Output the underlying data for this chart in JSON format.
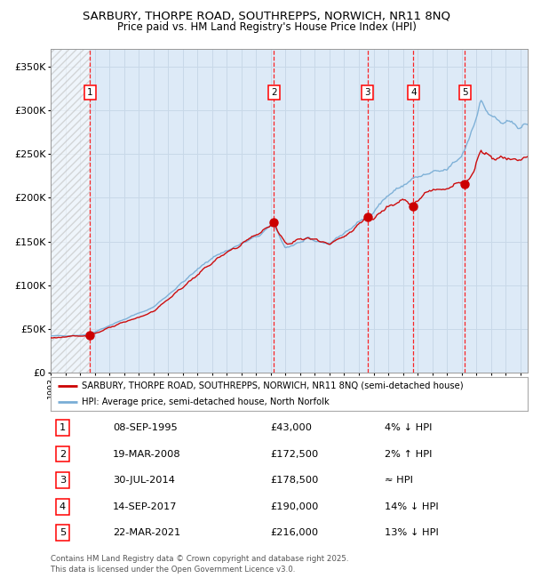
{
  "title_line1": "SARBURY, THORPE ROAD, SOUTHREPPS, NORWICH, NR11 8NQ",
  "title_line2": "Price paid vs. HM Land Registry's House Price Index (HPI)",
  "legend_line1": "SARBURY, THORPE ROAD, SOUTHREPPS, NORWICH, NR11 8NQ (semi-detached house)",
  "legend_line2": "HPI: Average price, semi-detached house, North Norfolk",
  "sales": [
    {
      "num": 1,
      "date": "08-SEP-1995",
      "price": 43000,
      "year": 1995.69,
      "hpi_rel": "4% ↓ HPI"
    },
    {
      "num": 2,
      "date": "19-MAR-2008",
      "price": 172500,
      "year": 2008.21,
      "hpi_rel": "2% ↑ HPI"
    },
    {
      "num": 3,
      "date": "30-JUL-2014",
      "price": 178500,
      "year": 2014.58,
      "hpi_rel": "≈ HPI"
    },
    {
      "num": 4,
      "date": "14-SEP-2017",
      "price": 190000,
      "year": 2017.71,
      "hpi_rel": "14% ↓ HPI"
    },
    {
      "num": 5,
      "date": "22-MAR-2021",
      "price": 216000,
      "year": 2021.23,
      "hpi_rel": "13% ↓ HPI"
    }
  ],
  "ylim": [
    0,
    370000
  ],
  "xlim_start": 1993.0,
  "xlim_end": 2025.5,
  "hatch_end_year": 1995.69,
  "footer": "Contains HM Land Registry data © Crown copyright and database right 2025.\nThis data is licensed under the Open Government Licence v3.0.",
  "house_color": "#cc0000",
  "hpi_color": "#7aaed6",
  "grid_color": "#c8d8e8",
  "background_color": "#ddeaf7",
  "hpi_anchors": [
    [
      1993.0,
      42000
    ],
    [
      1995.0,
      43000
    ],
    [
      1995.69,
      44800
    ],
    [
      2000.0,
      75000
    ],
    [
      2004.0,
      132000
    ],
    [
      2007.0,
      155000
    ],
    [
      2008.21,
      169000
    ],
    [
      2009.0,
      143000
    ],
    [
      2010.5,
      152000
    ],
    [
      2012.0,
      148000
    ],
    [
      2014.58,
      178500
    ],
    [
      2016.0,
      203000
    ],
    [
      2017.71,
      222000
    ],
    [
      2019.0,
      228000
    ],
    [
      2020.0,
      232000
    ],
    [
      2021.0,
      248000
    ],
    [
      2021.5,
      268000
    ],
    [
      2022.3,
      310000
    ],
    [
      2023.0,
      293000
    ],
    [
      2023.8,
      285000
    ],
    [
      2025.5,
      282000
    ]
  ],
  "house_anchors": [
    [
      1993.0,
      40000
    ],
    [
      1995.0,
      42000
    ],
    [
      1995.69,
      43000
    ],
    [
      2000.0,
      70000
    ],
    [
      2004.0,
      126000
    ],
    [
      2007.0,
      158000
    ],
    [
      2008.0,
      168000
    ],
    [
      2008.21,
      172500
    ],
    [
      2009.0,
      148000
    ],
    [
      2010.5,
      154000
    ],
    [
      2012.0,
      149000
    ],
    [
      2013.0,
      155000
    ],
    [
      2014.0,
      170000
    ],
    [
      2014.58,
      178500
    ],
    [
      2015.0,
      175000
    ],
    [
      2016.0,
      192000
    ],
    [
      2017.0,
      200000
    ],
    [
      2017.71,
      190000
    ],
    [
      2018.5,
      205000
    ],
    [
      2019.5,
      210000
    ],
    [
      2020.5,
      215000
    ],
    [
      2021.0,
      218000
    ],
    [
      2021.23,
      216000
    ],
    [
      2021.8,
      230000
    ],
    [
      2022.3,
      255000
    ],
    [
      2022.8,
      252000
    ],
    [
      2023.3,
      243000
    ],
    [
      2023.8,
      248000
    ],
    [
      2024.3,
      244000
    ],
    [
      2025.5,
      247000
    ]
  ],
  "yticks": [
    0,
    50000,
    100000,
    150000,
    200000,
    250000,
    300000,
    350000
  ],
  "xticks_start": 1993,
  "xticks_end": 2026
}
